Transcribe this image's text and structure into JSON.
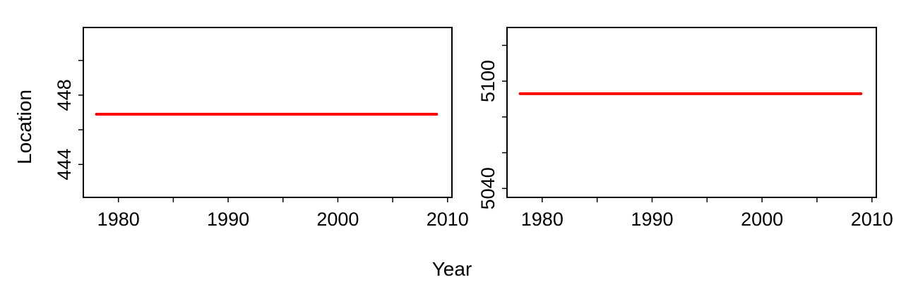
{
  "figure": {
    "shared_xlabel": "Year",
    "shared_ylabel": "Location",
    "line_color": "#ff0000",
    "axis_color": "#000000"
  },
  "chart_data": [
    {
      "type": "line",
      "title": "",
      "xlabel": "Year",
      "ylabel": "Location",
      "xlim": [
        1976.8,
        2010.4
      ],
      "ylim": [
        442.1,
        451.9
      ],
      "x_ticks": [
        1980,
        1985,
        1990,
        1995,
        2000,
        2005,
        2010
      ],
      "x_tick_labels": [
        "1980",
        "",
        "1990",
        "",
        "2000",
        "",
        "2010"
      ],
      "y_ticks": [
        444,
        446,
        448,
        450
      ],
      "y_tick_labels": [
        "444",
        "",
        "448",
        ""
      ],
      "grid": false,
      "series": [
        {
          "x": [
            1978,
            2009
          ],
          "y": [
            446.9,
            446.9
          ]
        }
      ]
    },
    {
      "type": "line",
      "title": "",
      "xlabel": "Year",
      "ylabel": "",
      "xlim": [
        1976.8,
        2010.4
      ],
      "ylim": [
        5035,
        5130
      ],
      "x_ticks": [
        1980,
        1985,
        1990,
        1995,
        2000,
        2005,
        2010
      ],
      "x_tick_labels": [
        "1980",
        "",
        "1990",
        "",
        "2000",
        "",
        "2010"
      ],
      "y_ticks": [
        5040,
        5060,
        5080,
        5100,
        5120
      ],
      "y_tick_labels": [
        "5040",
        "",
        "",
        "5100",
        ""
      ],
      "grid": false,
      "series": [
        {
          "x": [
            1978,
            2009
          ],
          "y": [
            5093,
            5093
          ]
        }
      ]
    }
  ]
}
